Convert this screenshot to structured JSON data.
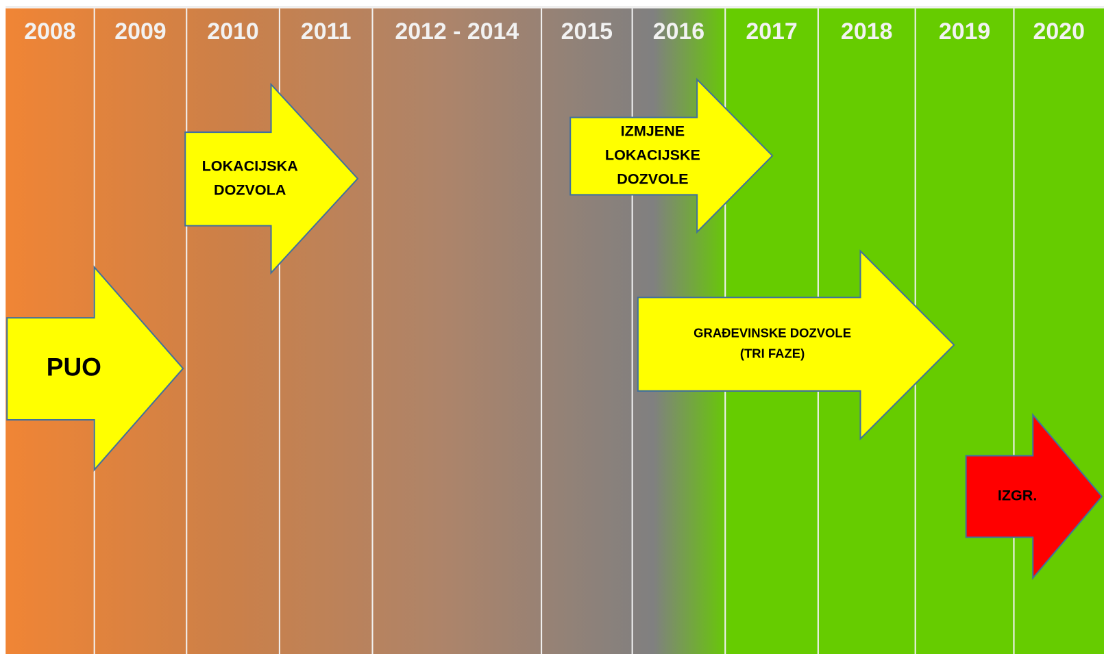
{
  "columns": [
    "2008",
    "2009",
    "2010",
    "2011",
    "2012 - 2014",
    "2015",
    "2016",
    "2017",
    "2018",
    "2019",
    "2020"
  ],
  "arrows": [
    {
      "lines": [
        "PUO"
      ]
    },
    {
      "lines": [
        "LOKACIJSKA",
        "DOZVOLA"
      ]
    },
    {
      "lines": [
        "IZMJENE",
        "LOKACIJSKE",
        "DOZVOLE"
      ]
    },
    {
      "lines": [
        "GRAĐEVINSKE DOZVOLE",
        "(TRI FAZE)"
      ]
    },
    {
      "lines": [
        "IZGR."
      ]
    }
  ]
}
